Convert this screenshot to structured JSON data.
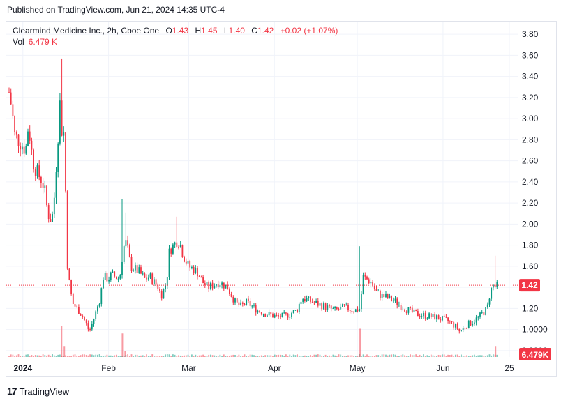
{
  "published": "Published on TradingView.com, Jun 21, 2024 14:35 UTC-4",
  "legend": {
    "symbol": "Clearmind Medicine Inc., 2h, Cboe One",
    "o_label": "O",
    "o_value": "1.43",
    "h_label": "H",
    "h_value": "1.45",
    "l_label": "L",
    "l_value": "1.40",
    "c_label": "C",
    "c_value": "1.42",
    "change": "+0.02 (+1.07%)",
    "vol_label": "Vol",
    "vol_value": "6.479 K"
  },
  "brand": "TradingView",
  "colors": {
    "up": "#089981",
    "down": "#f23645",
    "grid": "#f0f3fa",
    "axis_text": "#131722"
  },
  "chart_data": {
    "type": "candlestick",
    "title": "Clearmind Medicine Inc., 2h, Cboe One",
    "ylim": [
      0.74,
      3.92
    ],
    "y_ticks": [
      "3.80",
      "3.60",
      "3.40",
      "3.20",
      "3.00",
      "2.80",
      "2.60",
      "2.40",
      "2.20",
      "2.00",
      "1.80",
      "1.60",
      "1.40",
      "1.20",
      "1.0000",
      "0.8000"
    ],
    "x_ticks": [
      {
        "label": "2024",
        "date": "2024-01-01"
      },
      {
        "label": "Feb",
        "date": "2024-02-01"
      },
      {
        "label": "Mar",
        "date": "2024-03-01"
      },
      {
        "label": "Apr",
        "date": "2024-04-01"
      },
      {
        "label": "May",
        "date": "2024-05-01"
      },
      {
        "label": "Jun",
        "date": "2024-06-01"
      },
      {
        "label": "25",
        "date": "2024-06-25"
      }
    ],
    "last_price": "1.42",
    "last_volume": "6.479K",
    "price_path": [
      [
        "2023-12-27",
        3.25
      ],
      [
        "2023-12-28",
        3.1
      ],
      [
        "2023-12-29",
        2.85
      ],
      [
        "2024-01-02",
        2.7
      ],
      [
        "2024-01-03",
        2.95
      ],
      [
        "2024-01-04",
        2.72
      ],
      [
        "2024-01-05",
        2.55
      ],
      [
        "2024-01-08",
        2.4
      ],
      [
        "2024-01-09",
        2.3
      ],
      [
        "2024-01-10",
        2.1
      ],
      [
        "2024-01-11",
        2.05
      ],
      [
        "2024-01-12",
        2.1
      ],
      [
        "2024-01-15",
        3.4
      ],
      [
        "2024-01-15",
        2.9
      ],
      [
        "2024-01-16",
        2.85
      ],
      [
        "2024-01-17",
        1.65
      ],
      [
        "2024-01-18",
        1.4
      ],
      [
        "2024-01-19",
        1.25
      ],
      [
        "2024-01-22",
        1.15
      ],
      [
        "2024-01-24",
        1.05
      ],
      [
        "2024-01-25",
        0.98
      ],
      [
        "2024-01-26",
        1.05
      ],
      [
        "2024-01-29",
        1.3
      ],
      [
        "2024-01-30",
        1.5
      ],
      [
        "2024-02-01",
        1.48
      ],
      [
        "2024-02-02",
        1.52
      ],
      [
        "2024-02-05",
        1.48
      ],
      [
        "2024-02-06",
        1.7
      ],
      [
        "2024-02-07",
        1.85
      ],
      [
        "2024-02-08",
        1.75
      ],
      [
        "2024-02-09",
        1.6
      ],
      [
        "2024-02-12",
        1.55
      ],
      [
        "2024-02-14",
        1.48
      ],
      [
        "2024-02-16",
        1.5
      ],
      [
        "2024-02-19",
        1.4
      ],
      [
        "2024-02-20",
        1.32
      ],
      [
        "2024-02-22",
        1.45
      ],
      [
        "2024-02-23",
        1.75
      ],
      [
        "2024-02-26",
        1.85
      ],
      [
        "2024-02-27",
        1.8
      ],
      [
        "2024-02-28",
        1.7
      ],
      [
        "2024-03-01",
        1.6
      ],
      [
        "2024-03-04",
        1.55
      ],
      [
        "2024-03-06",
        1.45
      ],
      [
        "2024-03-08",
        1.4
      ],
      [
        "2024-03-12",
        1.45
      ],
      [
        "2024-03-15",
        1.4
      ],
      [
        "2024-03-18",
        1.25
      ],
      [
        "2024-03-20",
        1.22
      ],
      [
        "2024-03-22",
        1.26
      ],
      [
        "2024-03-26",
        1.18
      ],
      [
        "2024-03-29",
        1.15
      ],
      [
        "2024-04-02",
        1.12
      ],
      [
        "2024-04-05",
        1.13
      ],
      [
        "2024-04-09",
        1.18
      ],
      [
        "2024-04-11",
        1.3
      ],
      [
        "2024-04-15",
        1.26
      ],
      [
        "2024-04-19",
        1.22
      ],
      [
        "2024-04-23",
        1.18
      ],
      [
        "2024-04-26",
        1.21
      ],
      [
        "2024-04-30",
        1.18
      ],
      [
        "2024-05-02",
        1.2
      ],
      [
        "2024-05-03",
        1.5
      ],
      [
        "2024-05-06",
        1.45
      ],
      [
        "2024-05-08",
        1.35
      ],
      [
        "2024-05-10",
        1.32
      ],
      [
        "2024-05-14",
        1.28
      ],
      [
        "2024-05-17",
        1.22
      ],
      [
        "2024-05-21",
        1.16
      ],
      [
        "2024-05-24",
        1.14
      ],
      [
        "2024-05-29",
        1.12
      ],
      [
        "2024-06-03",
        1.08
      ],
      [
        "2024-06-06",
        1.02
      ],
      [
        "2024-06-07",
        0.98
      ],
      [
        "2024-06-10",
        1.05
      ],
      [
        "2024-06-12",
        1.08
      ],
      [
        "2024-06-14",
        1.12
      ],
      [
        "2024-06-17",
        1.2
      ],
      [
        "2024-06-18",
        1.35
      ],
      [
        "2024-06-19",
        1.42
      ],
      [
        "2024-06-20",
        1.4
      ],
      [
        "2024-06-21",
        1.42
      ]
    ],
    "spikes": [
      {
        "date": "2024-01-15",
        "high": 3.57
      },
      {
        "date": "2024-02-06",
        "high": 2.24
      },
      {
        "date": "2024-02-07",
        "high": 2.11
      },
      {
        "date": "2024-02-26",
        "high": 2.07
      },
      {
        "date": "2024-05-02",
        "high": 1.79
      },
      {
        "date": "2024-06-20",
        "high": 1.7
      }
    ],
    "volume_spikes": [
      {
        "date": "2024-01-15",
        "rel": 1.0
      },
      {
        "date": "2024-01-16",
        "rel": 0.35
      },
      {
        "date": "2024-02-06",
        "rel": 0.75
      },
      {
        "date": "2024-02-07",
        "rel": 0.2
      },
      {
        "date": "2024-05-02",
        "rel": 0.9
      },
      {
        "date": "2024-06-20",
        "rel": 0.35
      }
    ]
  }
}
